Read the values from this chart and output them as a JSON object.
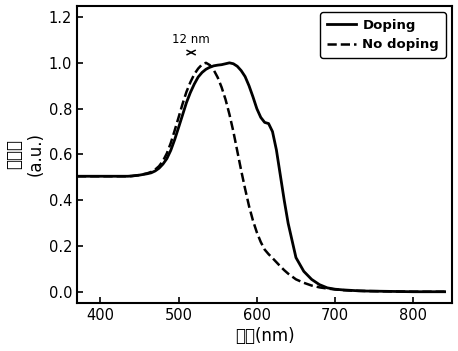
{
  "title": "",
  "xlabel": "波长(nm)",
  "ylabel": "吸收率\n(a.u.)",
  "xlim": [
    370,
    850
  ],
  "ylim": [
    -0.05,
    1.25
  ],
  "yticks": [
    0.0,
    0.2,
    0.4,
    0.6,
    0.8,
    1.0,
    1.2
  ],
  "xticks": [
    400,
    500,
    600,
    700,
    800
  ],
  "legend_doping": "Doping",
  "legend_no_doping": "No doping",
  "annotation_text": "12 nm",
  "line_color": "#000000",
  "background_color": "#ffffff",
  "x_doping": [
    370,
    375,
    380,
    385,
    390,
    395,
    400,
    405,
    410,
    415,
    420,
    425,
    430,
    435,
    440,
    445,
    450,
    455,
    460,
    465,
    470,
    475,
    480,
    485,
    490,
    495,
    500,
    505,
    510,
    515,
    520,
    525,
    530,
    535,
    540,
    545,
    550,
    555,
    560,
    565,
    570,
    575,
    580,
    585,
    590,
    595,
    600,
    605,
    610,
    615,
    620,
    625,
    630,
    635,
    640,
    650,
    660,
    670,
    680,
    690,
    700,
    710,
    720,
    730,
    740,
    760,
    780,
    800,
    820,
    840
  ],
  "y_doping": [
    0.505,
    0.505,
    0.505,
    0.505,
    0.505,
    0.505,
    0.505,
    0.505,
    0.505,
    0.505,
    0.505,
    0.505,
    0.505,
    0.505,
    0.506,
    0.508,
    0.51,
    0.513,
    0.516,
    0.52,
    0.528,
    0.54,
    0.558,
    0.582,
    0.618,
    0.665,
    0.718,
    0.772,
    0.826,
    0.87,
    0.907,
    0.938,
    0.958,
    0.972,
    0.981,
    0.987,
    0.99,
    0.992,
    0.996,
    1.0,
    0.996,
    0.985,
    0.966,
    0.94,
    0.9,
    0.852,
    0.8,
    0.762,
    0.74,
    0.735,
    0.7,
    0.62,
    0.51,
    0.4,
    0.3,
    0.15,
    0.09,
    0.055,
    0.032,
    0.018,
    0.012,
    0.009,
    0.007,
    0.005,
    0.004,
    0.003,
    0.002,
    0.001,
    0.001,
    0.001
  ],
  "x_nodoping": [
    370,
    375,
    380,
    385,
    390,
    395,
    400,
    405,
    410,
    415,
    420,
    425,
    430,
    435,
    440,
    445,
    450,
    455,
    460,
    465,
    470,
    475,
    480,
    485,
    490,
    495,
    500,
    505,
    510,
    515,
    520,
    525,
    530,
    535,
    540,
    545,
    550,
    555,
    560,
    565,
    570,
    575,
    580,
    585,
    590,
    595,
    600,
    605,
    610,
    615,
    620,
    625,
    630,
    635,
    640,
    650,
    660,
    670,
    680,
    690,
    700,
    710,
    720,
    730,
    740,
    760,
    780,
    800,
    820,
    840
  ],
  "y_nodoping": [
    0.505,
    0.505,
    0.505,
    0.505,
    0.505,
    0.505,
    0.505,
    0.505,
    0.505,
    0.505,
    0.505,
    0.505,
    0.505,
    0.505,
    0.506,
    0.508,
    0.51,
    0.514,
    0.518,
    0.524,
    0.534,
    0.549,
    0.572,
    0.605,
    0.65,
    0.705,
    0.762,
    0.82,
    0.873,
    0.915,
    0.95,
    0.975,
    0.993,
    1.0,
    0.99,
    0.968,
    0.936,
    0.893,
    0.84,
    0.775,
    0.7,
    0.615,
    0.53,
    0.45,
    0.375,
    0.312,
    0.26,
    0.218,
    0.185,
    0.165,
    0.148,
    0.13,
    0.112,
    0.095,
    0.08,
    0.055,
    0.04,
    0.028,
    0.02,
    0.015,
    0.011,
    0.008,
    0.006,
    0.005,
    0.004,
    0.003,
    0.002,
    0.001,
    0.001,
    0.001
  ]
}
